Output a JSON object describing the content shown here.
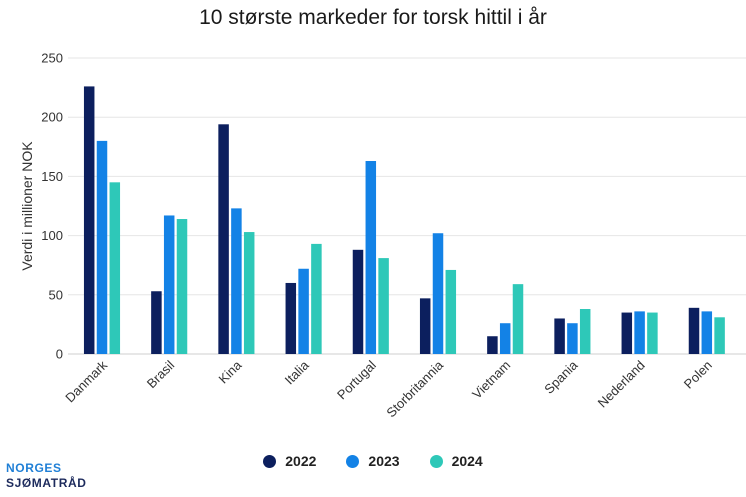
{
  "chart_data": {
    "type": "bar",
    "title": "10 største markeder for torsk hittil i år",
    "xlabel": "",
    "ylabel": "Verdi i millioner NOK",
    "ylim": [
      0,
      250
    ],
    "yticks": [
      0,
      50,
      100,
      150,
      200,
      250
    ],
    "grid": true,
    "legend_position": "bottom",
    "categories": [
      "Danmark",
      "Brasil",
      "Kina",
      "Italia",
      "Portugal",
      "Storbritannia",
      "Vietnam",
      "Spania",
      "Nederland",
      "Polen"
    ],
    "series": [
      {
        "name": "2022",
        "color": "#0c1f5e",
        "values": [
          226,
          53,
          194,
          60,
          88,
          47,
          15,
          30,
          35,
          39
        ]
      },
      {
        "name": "2023",
        "color": "#1382e6",
        "values": [
          180,
          117,
          123,
          72,
          163,
          102,
          26,
          26,
          36,
          36
        ]
      },
      {
        "name": "2024",
        "color": "#2ec8b8",
        "values": [
          145,
          114,
          103,
          93,
          81,
          71,
          59,
          38,
          35,
          31
        ]
      }
    ]
  },
  "logo": {
    "line1": "NORGES",
    "line2": "SJØMATRÅD"
  }
}
